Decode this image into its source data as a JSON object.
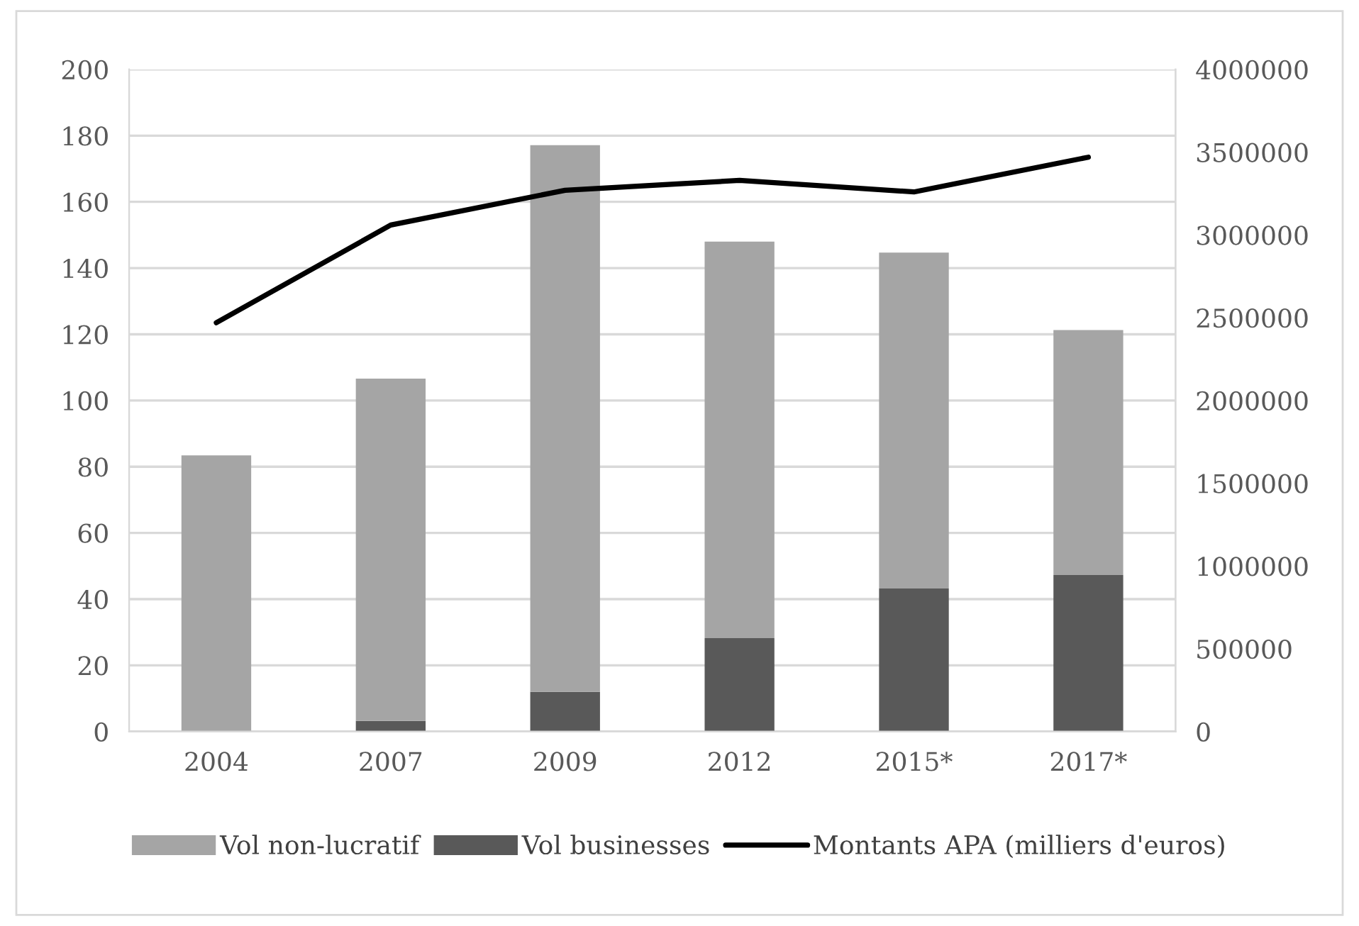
{
  "chart_data": {
    "type": "bar",
    "stacked": true,
    "categories": [
      "2004",
      "2007",
      "2009",
      "2012",
      "2015*",
      "2017*"
    ],
    "series": [
      {
        "name": "Vol businesses",
        "color": "#595959",
        "values": [
          null,
          3.2,
          12.0,
          28.2,
          43.2,
          47.3
        ]
      },
      {
        "name": "Vol non-lucratif",
        "color": "#a5a5a5",
        "values": [
          83.4,
          103.4,
          165.1,
          119.8,
          101.5,
          74.0
        ]
      },
      {
        "name": "Montants APA (milliers d'euros)",
        "type": "line",
        "axis": "y2",
        "color": "#000000",
        "values": [
          2470000,
          3060000,
          3270000,
          3330000,
          3260000,
          3470000
        ]
      }
    ],
    "ylim": [
      0,
      200
    ],
    "yticks": [
      0,
      20,
      40,
      60,
      80,
      100,
      120,
      140,
      160,
      180,
      200
    ],
    "y2lim": [
      0,
      4000000
    ],
    "y2ticks": [
      0,
      500000,
      1000000,
      1500000,
      2000000,
      2500000,
      3000000,
      3500000,
      4000000
    ],
    "grid": "y",
    "legend": "bottom",
    "marker": "none",
    "line_style": "solid"
  }
}
